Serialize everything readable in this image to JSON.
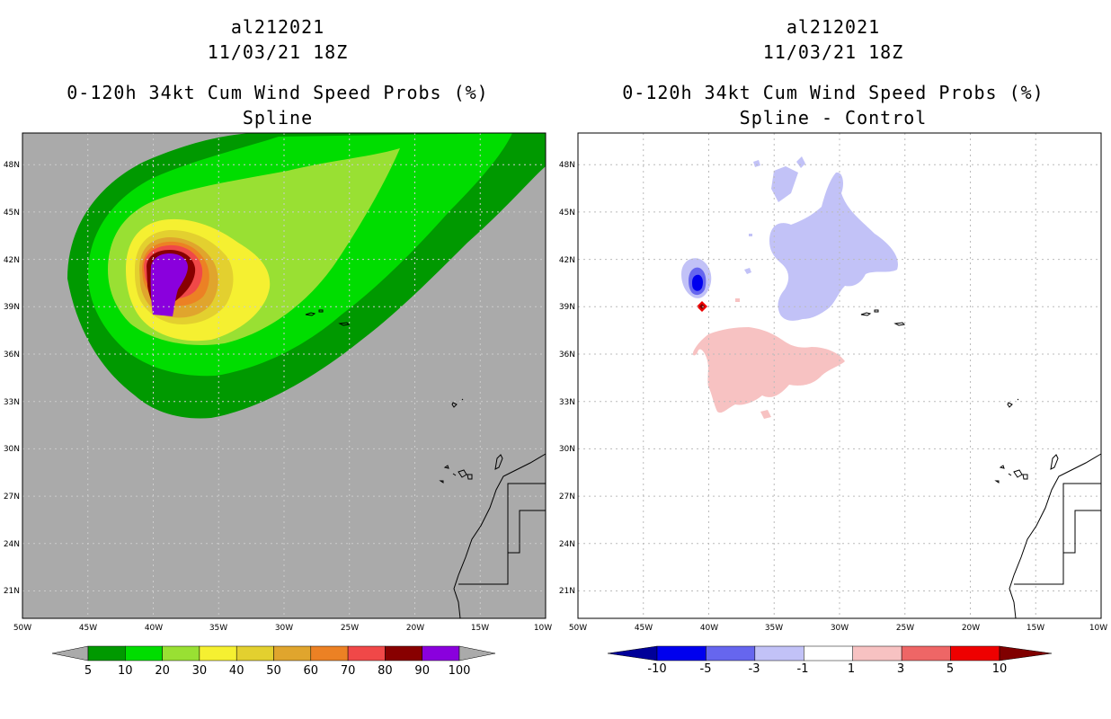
{
  "left_panel": {
    "storm_id": "al212021",
    "datetime": "11/03/21 18Z",
    "product": "0-120h 34kt Cum Wind Speed Probs (%)",
    "subtitle": "Spline"
  },
  "right_panel": {
    "storm_id": "al212021",
    "datetime": "11/03/21 18Z",
    "product": "0-120h 34kt Cum Wind Speed Probs (%)",
    "subtitle": "Spline - Control"
  },
  "map_axes": {
    "lat_labels": [
      "48N",
      "45N",
      "42N",
      "39N",
      "36N",
      "33N",
      "30N",
      "27N",
      "24N",
      "21N"
    ],
    "lon_labels": [
      "50W",
      "45W",
      "40W",
      "35W",
      "30W",
      "25W",
      "20W",
      "15W",
      "10W"
    ]
  },
  "left_colorbar": {
    "labels": [
      "5",
      "10",
      "20",
      "30",
      "40",
      "50",
      "60",
      "70",
      "80",
      "90",
      "100"
    ],
    "colors": [
      "#009900",
      "#00dd00",
      "#99e033",
      "#f5f031",
      "#e3d02f",
      "#e0a52d",
      "#ec8124",
      "#f04848",
      "#880000",
      "#8a00dd"
    ],
    "background_color": "#aaaaaa"
  },
  "right_colorbar": {
    "labels": [
      "-10",
      "-5",
      "-3",
      "-1",
      "1",
      "3",
      "5",
      "10"
    ],
    "colors": [
      "#000099",
      "#0000ee",
      "#6666ee",
      "#c2c2f7",
      "#ffffff",
      "#f7c2c2",
      "#ee6666",
      "#ee0000",
      "#800000"
    ]
  }
}
